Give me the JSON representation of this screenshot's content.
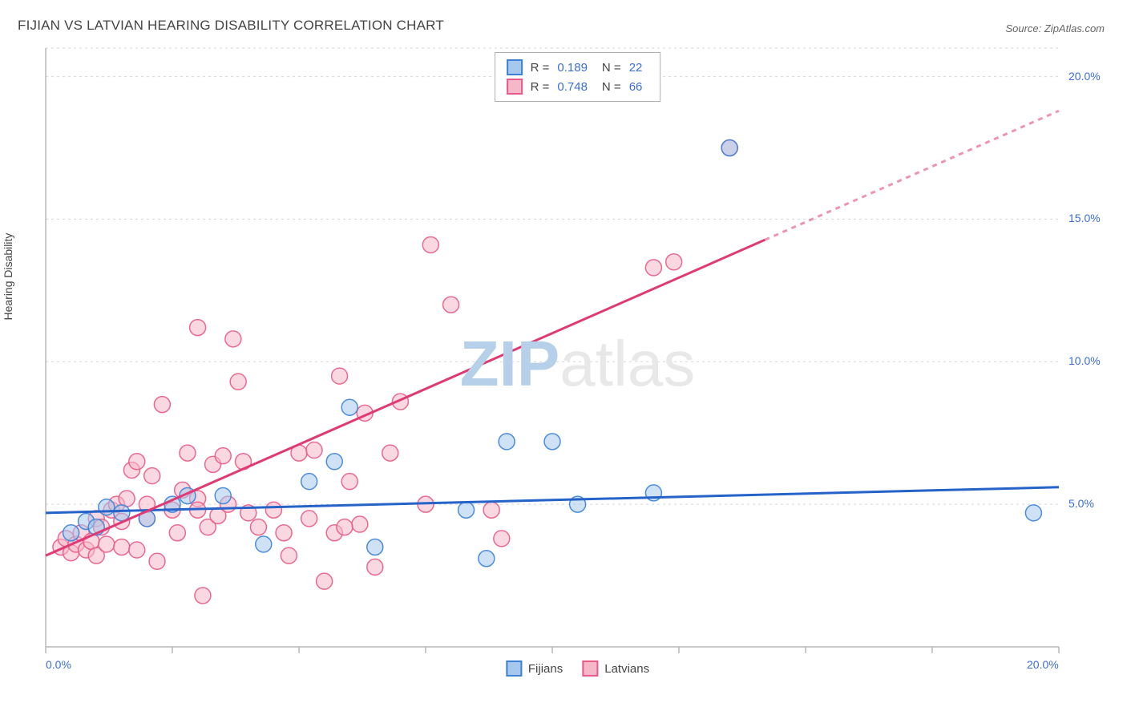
{
  "chart": {
    "type": "scatter",
    "title": "FIJIAN VS LATVIAN HEARING DISABILITY CORRELATION CHART",
    "source": "Source: ZipAtlas.com",
    "y_axis_label": "Hearing Disability",
    "watermark_1": "ZIP",
    "watermark_2": "atlas",
    "xlim": [
      0,
      20
    ],
    "ylim": [
      0,
      21
    ],
    "x_tick_step": 2.5,
    "y_tick_step": 5,
    "x_tick_labels": {
      "0": "0.0%",
      "20": "20.0%"
    },
    "y_tick_labels": {
      "5": "5.0%",
      "10": "10.0%",
      "15": "15.0%",
      "20": "20.0%"
    },
    "grid_color": "#d5d5d5",
    "axis_color": "#b8b8b8",
    "background_color": "#ffffff",
    "series": [
      {
        "name": "Fijians",
        "color_fill": "#a6c8ec",
        "color_stroke": "#3b82d6",
        "marker_radius": 10,
        "marker_opacity": 0.55,
        "R_label": "R  =",
        "R": "0.189",
        "N_label": "N  =",
        "N": "22",
        "trend": {
          "x1": 0,
          "y1": 4.7,
          "x2": 20,
          "y2": 5.6,
          "stroke": "#2563c9",
          "width": 3
        },
        "points": [
          [
            0.5,
            4.0
          ],
          [
            0.8,
            4.4
          ],
          [
            1.0,
            4.2
          ],
          [
            1.2,
            4.9
          ],
          [
            1.5,
            4.7
          ],
          [
            2.0,
            4.5
          ],
          [
            2.5,
            5.0
          ],
          [
            2.8,
            5.3
          ],
          [
            3.5,
            5.3
          ],
          [
            4.3,
            3.6
          ],
          [
            5.2,
            5.8
          ],
          [
            5.7,
            6.5
          ],
          [
            6.0,
            8.4
          ],
          [
            6.5,
            3.5
          ],
          [
            8.3,
            4.8
          ],
          [
            8.7,
            3.1
          ],
          [
            9.1,
            7.2
          ],
          [
            10.0,
            7.2
          ],
          [
            10.5,
            5.0
          ],
          [
            12.0,
            5.4
          ],
          [
            13.5,
            17.5
          ],
          [
            19.5,
            4.7
          ]
        ]
      },
      {
        "name": "Latvians",
        "color_fill": "#f4b8c8",
        "color_stroke": "#e85a8a",
        "marker_radius": 10,
        "marker_opacity": 0.55,
        "R_label": "R  =",
        "R": "0.748",
        "N_label": "N  =",
        "N": "66",
        "trend": {
          "x1": 0,
          "y1": 3.2,
          "x2": 20,
          "y2": 18.8,
          "solid_to_x": 14.2,
          "stroke": "#e03a74",
          "width": 3
        },
        "points": [
          [
            0.3,
            3.5
          ],
          [
            0.4,
            3.8
          ],
          [
            0.5,
            3.3
          ],
          [
            0.6,
            3.6
          ],
          [
            0.7,
            4.0
          ],
          [
            0.8,
            3.4
          ],
          [
            0.9,
            3.7
          ],
          [
            1.0,
            4.5
          ],
          [
            1.0,
            3.2
          ],
          [
            1.1,
            4.2
          ],
          [
            1.2,
            3.6
          ],
          [
            1.3,
            4.8
          ],
          [
            1.4,
            5.0
          ],
          [
            1.5,
            3.5
          ],
          [
            1.5,
            4.4
          ],
          [
            1.6,
            5.2
          ],
          [
            1.7,
            6.2
          ],
          [
            1.8,
            6.5
          ],
          [
            1.8,
            3.4
          ],
          [
            2.0,
            4.5
          ],
          [
            2.0,
            5.0
          ],
          [
            2.1,
            6.0
          ],
          [
            2.2,
            3.0
          ],
          [
            2.3,
            8.5
          ],
          [
            2.5,
            4.8
          ],
          [
            2.6,
            4.0
          ],
          [
            2.7,
            5.5
          ],
          [
            2.8,
            6.8
          ],
          [
            3.0,
            5.2
          ],
          [
            3.0,
            11.2
          ],
          [
            3.1,
            1.8
          ],
          [
            3.2,
            4.2
          ],
          [
            3.3,
            6.4
          ],
          [
            3.4,
            4.6
          ],
          [
            3.5,
            6.7
          ],
          [
            3.6,
            5.0
          ],
          [
            3.7,
            10.8
          ],
          [
            3.8,
            9.3
          ],
          [
            3.9,
            6.5
          ],
          [
            4.0,
            4.7
          ],
          [
            4.2,
            4.2
          ],
          [
            4.5,
            4.8
          ],
          [
            4.8,
            3.2
          ],
          [
            5.0,
            6.8
          ],
          [
            5.2,
            4.5
          ],
          [
            5.3,
            6.9
          ],
          [
            5.5,
            2.3
          ],
          [
            5.7,
            4.0
          ],
          [
            5.8,
            9.5
          ],
          [
            6.0,
            5.8
          ],
          [
            6.2,
            4.3
          ],
          [
            6.3,
            8.2
          ],
          [
            6.5,
            2.8
          ],
          [
            6.8,
            6.8
          ],
          [
            7.0,
            8.6
          ],
          [
            7.5,
            5.0
          ],
          [
            7.6,
            14.1
          ],
          [
            8.0,
            12.0
          ],
          [
            8.8,
            4.8
          ],
          [
            9.0,
            3.8
          ],
          [
            12.0,
            13.3
          ],
          [
            12.4,
            13.5
          ],
          [
            13.5,
            17.5
          ],
          [
            4.7,
            4.0
          ],
          [
            5.9,
            4.2
          ],
          [
            3.0,
            4.8
          ]
        ]
      }
    ],
    "stats_box_border": "#999999",
    "legend_labels": {
      "fijians": "Fijians",
      "latvians": "Latvians"
    }
  }
}
